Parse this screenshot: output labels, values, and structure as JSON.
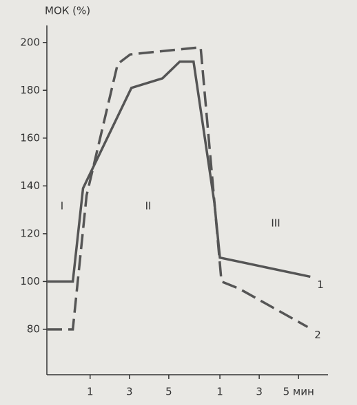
{
  "chart_data": {
    "type": "line",
    "y_label": "МОК (%)",
    "ylim": [
      61,
      210
    ],
    "yticks": [
      80,
      100,
      120,
      140,
      160,
      180,
      200
    ],
    "xlim": [
      -0.1,
      6.7
    ],
    "xticks": [
      {
        "value": 1,
        "label": "1"
      },
      {
        "value": 2,
        "label": "3"
      },
      {
        "value": 3,
        "label": "5"
      },
      {
        "value": 4.3,
        "label": "1"
      },
      {
        "value": 5.3,
        "label": "3"
      },
      {
        "value": 6.3,
        "label": "5 мин"
      }
    ],
    "annotations": [
      "I",
      "II",
      "III"
    ],
    "series": [
      {
        "name": "1",
        "color": "#555",
        "dash": false,
        "x": [
          -0.1,
          0.56,
          0.82,
          2.05,
          2.84,
          3.28,
          3.63,
          4.16,
          4.3,
          6.6
        ],
        "values": [
          100,
          100,
          139,
          181,
          185,
          192,
          192,
          133,
          110,
          102
        ]
      },
      {
        "name": "2",
        "color": "#555",
        "dash": true,
        "x": [
          -0.1,
          0.56,
          0.91,
          1.7,
          2.02,
          3.81,
          4.34,
          4.79,
          6.53
        ],
        "values": [
          80,
          80,
          136,
          191,
          195,
          198,
          100,
          97,
          81
        ]
      }
    ]
  }
}
